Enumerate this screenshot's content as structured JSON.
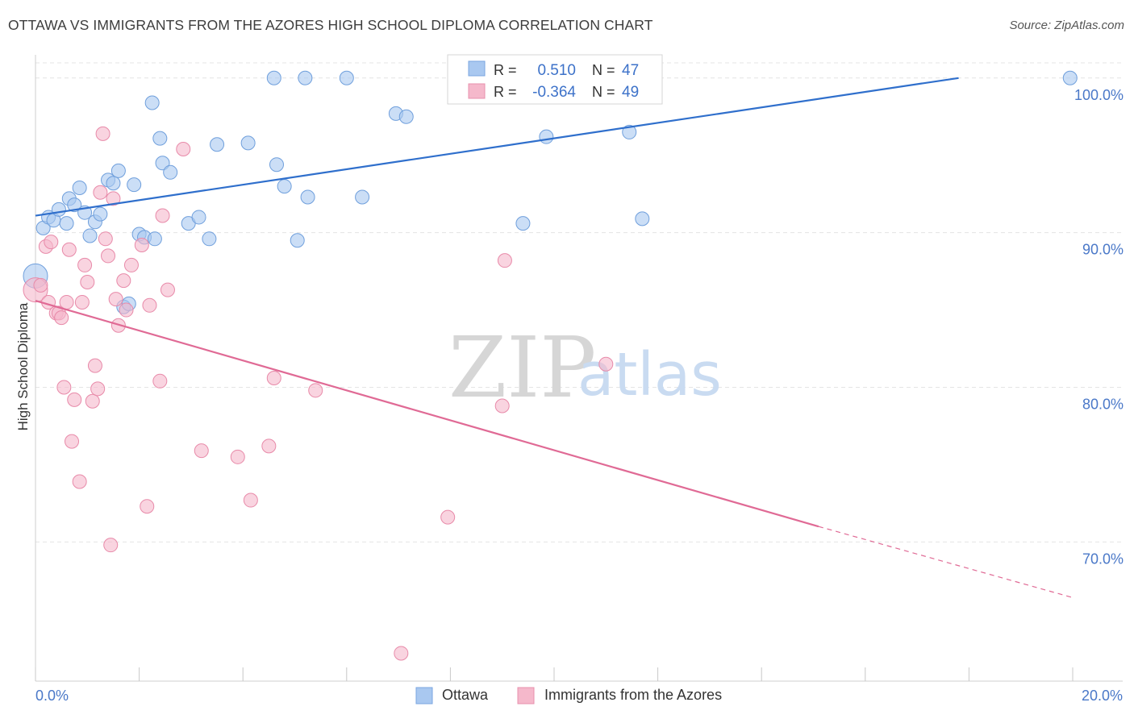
{
  "title": "OTTAWA VS IMMIGRANTS FROM THE AZORES HIGH SCHOOL DIPLOMA CORRELATION CHART",
  "source": "Source: ZipAtlas.com",
  "watermark": {
    "zip": "ZIP",
    "atlas": "atlas"
  },
  "legend": {
    "rows": [
      {
        "r_label": "R =",
        "r_value": "0.510",
        "n_label": "N =",
        "n_value": "47",
        "color": "#a9c8f0"
      },
      {
        "r_label": "R =",
        "r_value": "-0.364",
        "n_label": "N =",
        "n_value": "49",
        "color": "#f5b8cb"
      }
    ]
  },
  "bottom_legend": [
    {
      "label": "Ottawa",
      "color": "#a9c8f0"
    },
    {
      "label": "Immigrants from the Azores",
      "color": "#f5b8cb"
    }
  ],
  "chart_data": {
    "type": "scatter",
    "title": "OTTAWA VS IMMIGRANTS FROM THE AZORES HIGH SCHOOL DIPLOMA CORRELATION CHART",
    "xlabel": "",
    "ylabel": "High School Diploma",
    "xlim": [
      0,
      20
    ],
    "ylim": [
      61,
      101.5
    ],
    "x_tick_labels": {
      "left": "0.0%",
      "right": "20.0%"
    },
    "y_ticks": [
      {
        "value": 100,
        "label": "100.0%"
      },
      {
        "value": 90,
        "label": "90.0%"
      },
      {
        "value": 80,
        "label": "80.0%"
      },
      {
        "value": 70,
        "label": "70.0%"
      }
    ],
    "grid": true,
    "legend_position": "top-center",
    "colors": {
      "ottawa": "#a9c8f0",
      "ottawa_line": "#2f6fcc",
      "azores": "#f5b8cb",
      "azores_line": "#e06a95",
      "tick_text": "#4a78c8"
    },
    "series": [
      {
        "name": "Ottawa",
        "points": [
          [
            0.0,
            87.2
          ],
          [
            0.15,
            90.3
          ],
          [
            0.25,
            91.0
          ],
          [
            0.35,
            90.8
          ],
          [
            0.45,
            91.5
          ],
          [
            0.6,
            90.6
          ],
          [
            0.65,
            92.2
          ],
          [
            0.75,
            91.8
          ],
          [
            0.85,
            92.9
          ],
          [
            0.95,
            91.3
          ],
          [
            1.05,
            89.8
          ],
          [
            1.15,
            90.7
          ],
          [
            1.25,
            91.2
          ],
          [
            1.4,
            93.4
          ],
          [
            1.5,
            93.2
          ],
          [
            1.6,
            94.0
          ],
          [
            1.7,
            85.2
          ],
          [
            1.8,
            85.4
          ],
          [
            1.9,
            93.1
          ],
          [
            2.0,
            89.9
          ],
          [
            2.1,
            89.7
          ],
          [
            2.25,
            98.4
          ],
          [
            2.3,
            89.6
          ],
          [
            2.4,
            96.1
          ],
          [
            2.45,
            94.5
          ],
          [
            2.6,
            93.9
          ],
          [
            2.95,
            90.6
          ],
          [
            3.15,
            91.0
          ],
          [
            3.35,
            89.6
          ],
          [
            3.5,
            95.7
          ],
          [
            4.1,
            95.8
          ],
          [
            4.6,
            100.0
          ],
          [
            4.65,
            94.4
          ],
          [
            4.8,
            93.0
          ],
          [
            5.05,
            89.5
          ],
          [
            5.2,
            100.0
          ],
          [
            5.25,
            92.3
          ],
          [
            6.0,
            100.0
          ],
          [
            6.3,
            92.3
          ],
          [
            6.95,
            97.7
          ],
          [
            7.15,
            97.5
          ],
          [
            8.35,
            100.0
          ],
          [
            9.4,
            90.6
          ],
          [
            9.85,
            96.2
          ],
          [
            11.45,
            96.5
          ],
          [
            11.7,
            90.9
          ],
          [
            19.95,
            100.0
          ]
        ]
      },
      {
        "name": "Immigrants from the Azores",
        "points": [
          [
            0.0,
            86.3
          ],
          [
            0.1,
            86.6
          ],
          [
            0.2,
            89.1
          ],
          [
            0.25,
            85.5
          ],
          [
            0.3,
            89.4
          ],
          [
            0.4,
            84.8
          ],
          [
            0.45,
            84.8
          ],
          [
            0.5,
            84.5
          ],
          [
            0.55,
            80.0
          ],
          [
            0.6,
            85.5
          ],
          [
            0.65,
            88.9
          ],
          [
            0.7,
            76.5
          ],
          [
            0.75,
            79.2
          ],
          [
            0.85,
            73.9
          ],
          [
            0.9,
            85.5
          ],
          [
            0.95,
            87.9
          ],
          [
            1.0,
            86.8
          ],
          [
            1.1,
            79.1
          ],
          [
            1.15,
            81.4
          ],
          [
            1.2,
            79.9
          ],
          [
            1.25,
            92.6
          ],
          [
            1.3,
            96.4
          ],
          [
            1.35,
            89.6
          ],
          [
            1.4,
            88.5
          ],
          [
            1.45,
            69.8
          ],
          [
            1.5,
            92.2
          ],
          [
            1.55,
            85.7
          ],
          [
            1.6,
            84.0
          ],
          [
            1.7,
            86.9
          ],
          [
            1.75,
            85.0
          ],
          [
            1.85,
            87.9
          ],
          [
            2.05,
            89.2
          ],
          [
            2.15,
            72.3
          ],
          [
            2.2,
            85.3
          ],
          [
            2.4,
            80.4
          ],
          [
            2.45,
            91.1
          ],
          [
            2.55,
            86.3
          ],
          [
            2.85,
            95.4
          ],
          [
            3.2,
            75.9
          ],
          [
            3.9,
            75.5
          ],
          [
            4.15,
            72.7
          ],
          [
            4.5,
            76.2
          ],
          [
            4.6,
            80.6
          ],
          [
            5.4,
            79.8
          ],
          [
            7.05,
            62.8
          ],
          [
            7.95,
            71.6
          ],
          [
            9.0,
            78.8
          ],
          [
            9.05,
            88.2
          ],
          [
            11.0,
            81.5
          ]
        ]
      }
    ],
    "trend_lines": [
      {
        "series": "Ottawa",
        "from": [
          0,
          91.1
        ],
        "to": [
          17.8,
          100.0
        ]
      },
      {
        "series": "Immigrants from the Azores",
        "from": [
          0,
          85.6
        ],
        "to": [
          15.1,
          71.0
        ],
        "dashed_to": [
          20.0,
          66.4
        ]
      }
    ]
  }
}
